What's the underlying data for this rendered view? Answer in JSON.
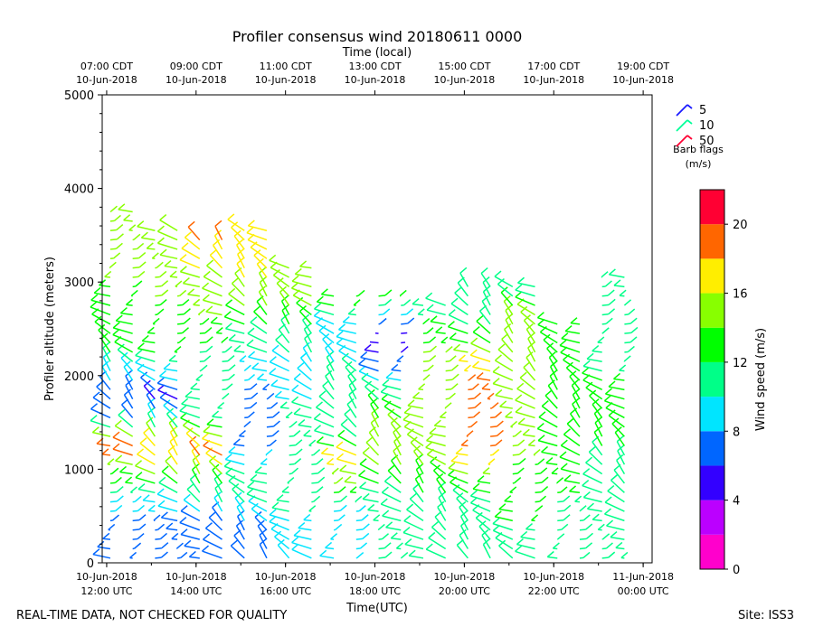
{
  "chart_data": {
    "type": "wind-barb-time-height",
    "title": "Profiler consensus wind 20180611 0000",
    "top_axis_label": "Time (local)",
    "xlabel": "Time(UTC)",
    "ylabel": "Profiler altitude (meters)",
    "colorbar_label": "Wind speed (m/s)",
    "footer_left": "REAL-TIME DATA, NOT CHECKED FOR QUALITY",
    "footer_right": "Site: ISS3",
    "x_range_hours_utc": [
      11.9,
      24.2
    ],
    "ylim": [
      0,
      5000
    ],
    "y_ticks": [
      0,
      1000,
      2000,
      3000,
      4000,
      5000
    ],
    "y_tick_labels": [
      "0",
      "1000",
      "2000",
      "3000",
      "4000",
      "5000"
    ],
    "bottom_ticks": [
      {
        "hour": 12,
        "line1": "10-Jun-2018",
        "line2": "12:00 UTC"
      },
      {
        "hour": 14,
        "line1": "10-Jun-2018",
        "line2": "14:00 UTC"
      },
      {
        "hour": 16,
        "line1": "10-Jun-2018",
        "line2": "16:00 UTC"
      },
      {
        "hour": 18,
        "line1": "10-Jun-2018",
        "line2": "18:00 UTC"
      },
      {
        "hour": 20,
        "line1": "10-Jun-2018",
        "line2": "20:00 UTC"
      },
      {
        "hour": 22,
        "line1": "10-Jun-2018",
        "line2": "22:00 UTC"
      },
      {
        "hour": 24,
        "line1": "11-Jun-2018",
        "line2": "00:00 UTC"
      }
    ],
    "top_ticks": [
      {
        "hour": 12,
        "line1": "07:00 CDT",
        "line2": "10-Jun-2018"
      },
      {
        "hour": 14,
        "line1": "09:00 CDT",
        "line2": "10-Jun-2018"
      },
      {
        "hour": 16,
        "line1": "11:00 CDT",
        "line2": "10-Jun-2018"
      },
      {
        "hour": 18,
        "line1": "13:00 CDT",
        "line2": "10-Jun-2018"
      },
      {
        "hour": 20,
        "line1": "15:00 CDT",
        "line2": "10-Jun-2018"
      },
      {
        "hour": 22,
        "line1": "17:00 CDT",
        "line2": "10-Jun-2018"
      },
      {
        "hour": 24,
        "line1": "19:00 CDT",
        "line2": "10-Jun-2018"
      }
    ],
    "legend": {
      "title_line1": "Barb flags",
      "title_line2": "(m/s)",
      "entries": [
        {
          "label": "5",
          "color": "#1a1aff"
        },
        {
          "label": "10",
          "color": "#00ff99"
        },
        {
          "label": "50",
          "color": "#ff0033"
        }
      ]
    },
    "colorbar": {
      "min": 0,
      "max": 22,
      "bands": [
        {
          "from": 0,
          "to": 2,
          "color": "#ff00cc"
        },
        {
          "from": 2,
          "to": 4,
          "color": "#bb00ff"
        },
        {
          "from": 4,
          "to": 6,
          "color": "#3300ff"
        },
        {
          "from": 6,
          "to": 8,
          "color": "#0066ff"
        },
        {
          "from": 8,
          "to": 10,
          "color": "#00e5ff"
        },
        {
          "from": 10,
          "to": 12,
          "color": "#00ff88"
        },
        {
          "from": 12,
          "to": 14,
          "color": "#00ff00"
        },
        {
          "from": 14,
          "to": 16,
          "color": "#88ff00"
        },
        {
          "from": 16,
          "to": 18,
          "color": "#ffee00"
        },
        {
          "from": 18,
          "to": 20,
          "color": "#ff6600"
        },
        {
          "from": 20,
          "to": 22,
          "color": "#ff0033"
        }
      ],
      "ticks": [
        0,
        4,
        8,
        12,
        16,
        20
      ],
      "tick_labels": [
        "0",
        "4",
        "8",
        "12",
        "16",
        "20"
      ]
    },
    "profile_times_hours": [
      12.0,
      12.5,
      13.0,
      13.5,
      14.0,
      14.5,
      15.0,
      15.5,
      16.0,
      16.5,
      17.0,
      17.5,
      18.0,
      18.5,
      19.0,
      19.5,
      20.0,
      20.5,
      21.0,
      21.5,
      22.0,
      22.5,
      23.0,
      23.5
    ],
    "gates": [
      {
        "t": 12.0,
        "profile": [
          [
            0,
            6
          ],
          [
            300,
            6
          ],
          [
            700,
            10
          ],
          [
            1000,
            14
          ],
          [
            1200,
            20
          ],
          [
            1500,
            8
          ],
          [
            1800,
            6
          ],
          [
            2200,
            12
          ],
          [
            2600,
            12
          ],
          [
            3000,
            14
          ],
          [
            3400,
            14
          ],
          [
            3800,
            16
          ]
        ]
      },
      {
        "t": 13.0,
        "profile": [
          [
            0,
            6
          ],
          [
            400,
            6
          ],
          [
            800,
            12
          ],
          [
            1100,
            18
          ],
          [
            1300,
            16
          ],
          [
            1700,
            5
          ],
          [
            2200,
            12
          ],
          [
            2800,
            14
          ],
          [
            3300,
            14
          ],
          [
            3600,
            16
          ]
        ]
      },
      {
        "t": 14.0,
        "profile": [
          [
            0,
            6
          ],
          [
            500,
            8
          ],
          [
            900,
            14
          ],
          [
            1200,
            19
          ],
          [
            1500,
            12
          ],
          [
            2000,
            10
          ],
          [
            2600,
            14
          ],
          [
            3100,
            16
          ],
          [
            3500,
            19
          ]
        ]
      },
      {
        "t": 15.0,
        "profile": [
          [
            0,
            7
          ],
          [
            400,
            8
          ],
          [
            900,
            12
          ],
          [
            1300,
            6
          ],
          [
            1700,
            7
          ],
          [
            2500,
            12
          ],
          [
            3000,
            16
          ],
          [
            3600,
            18
          ]
        ]
      },
      {
        "t": 16.0,
        "profile": [
          [
            0,
            9
          ],
          [
            500,
            10
          ],
          [
            1000,
            12
          ],
          [
            1300,
            11
          ],
          [
            1700,
            10
          ],
          [
            2100,
            9
          ],
          [
            2700,
            14
          ],
          [
            3200,
            16
          ]
        ]
      },
      {
        "t": 17.0,
        "profile": [
          [
            0,
            9
          ],
          [
            600,
            10
          ],
          [
            1100,
            18
          ],
          [
            1300,
            12
          ],
          [
            2500,
            9
          ],
          [
            2900,
            14
          ]
        ]
      },
      {
        "t": 18.0,
        "profile": [
          [
            0,
            10
          ],
          [
            600,
            10
          ],
          [
            1200,
            16
          ],
          [
            1500,
            14
          ],
          [
            2400,
            4
          ],
          [
            2900,
            13
          ]
        ]
      },
      {
        "t": 19.0,
        "profile": [
          [
            0,
            10
          ],
          [
            700,
            12
          ],
          [
            1300,
            16
          ],
          [
            1600,
            15
          ],
          [
            2300,
            14
          ],
          [
            2800,
            10
          ]
        ]
      },
      {
        "t": 20.0,
        "profile": [
          [
            0,
            11
          ],
          [
            700,
            12
          ],
          [
            1200,
            18
          ],
          [
            1600,
            20
          ],
          [
            2000,
            18
          ],
          [
            2600,
            10
          ],
          [
            3000,
            11
          ]
        ]
      },
      {
        "t": 21.0,
        "profile": [
          [
            0,
            11
          ],
          [
            800,
            13
          ],
          [
            1400,
            15
          ],
          [
            2000,
            16
          ],
          [
            2600,
            15
          ],
          [
            3000,
            10
          ]
        ]
      },
      {
        "t": 22.0,
        "profile": [
          [
            0,
            11
          ],
          [
            700,
            12
          ],
          [
            1400,
            13
          ],
          [
            2000,
            13
          ],
          [
            2600,
            12
          ]
        ]
      },
      {
        "t": 23.0,
        "profile": [
          [
            0,
            10
          ],
          [
            600,
            11
          ],
          [
            1200,
            12
          ],
          [
            2000,
            12
          ],
          [
            2700,
            11
          ],
          [
            3100,
            11
          ]
        ]
      }
    ]
  }
}
